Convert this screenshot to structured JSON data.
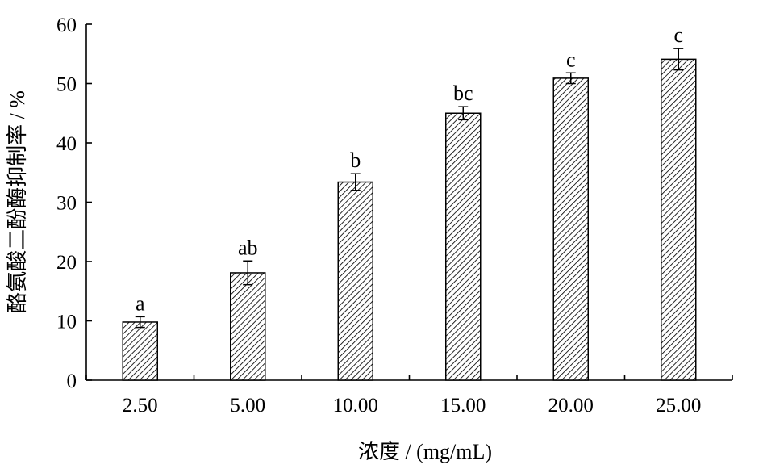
{
  "chart_data": {
    "type": "bar",
    "title": "",
    "xlabel": "浓度 / (mg/mL)",
    "ylabel": "酪氨酸二酚酶抑制率 / %",
    "ylim": [
      0,
      60
    ],
    "yticks": [
      0,
      10,
      20,
      30,
      40,
      50,
      60
    ],
    "grid": false,
    "legend": "none",
    "categories": [
      "2.50",
      "5.00",
      "10.00",
      "15.00",
      "20.00",
      "25.00"
    ],
    "values": [
      9.8,
      18.1,
      33.4,
      45.0,
      50.9,
      54.1
    ],
    "errors": [
      0.9,
      2.0,
      1.4,
      1.1,
      0.9,
      1.8
    ],
    "significance_labels": [
      "a",
      "ab",
      "b",
      "bc",
      "c",
      "c"
    ],
    "bar_fill": "hatched",
    "colors": {
      "bar_stroke": "#000000",
      "hatch": "#000000",
      "background": "#ffffff"
    }
  }
}
